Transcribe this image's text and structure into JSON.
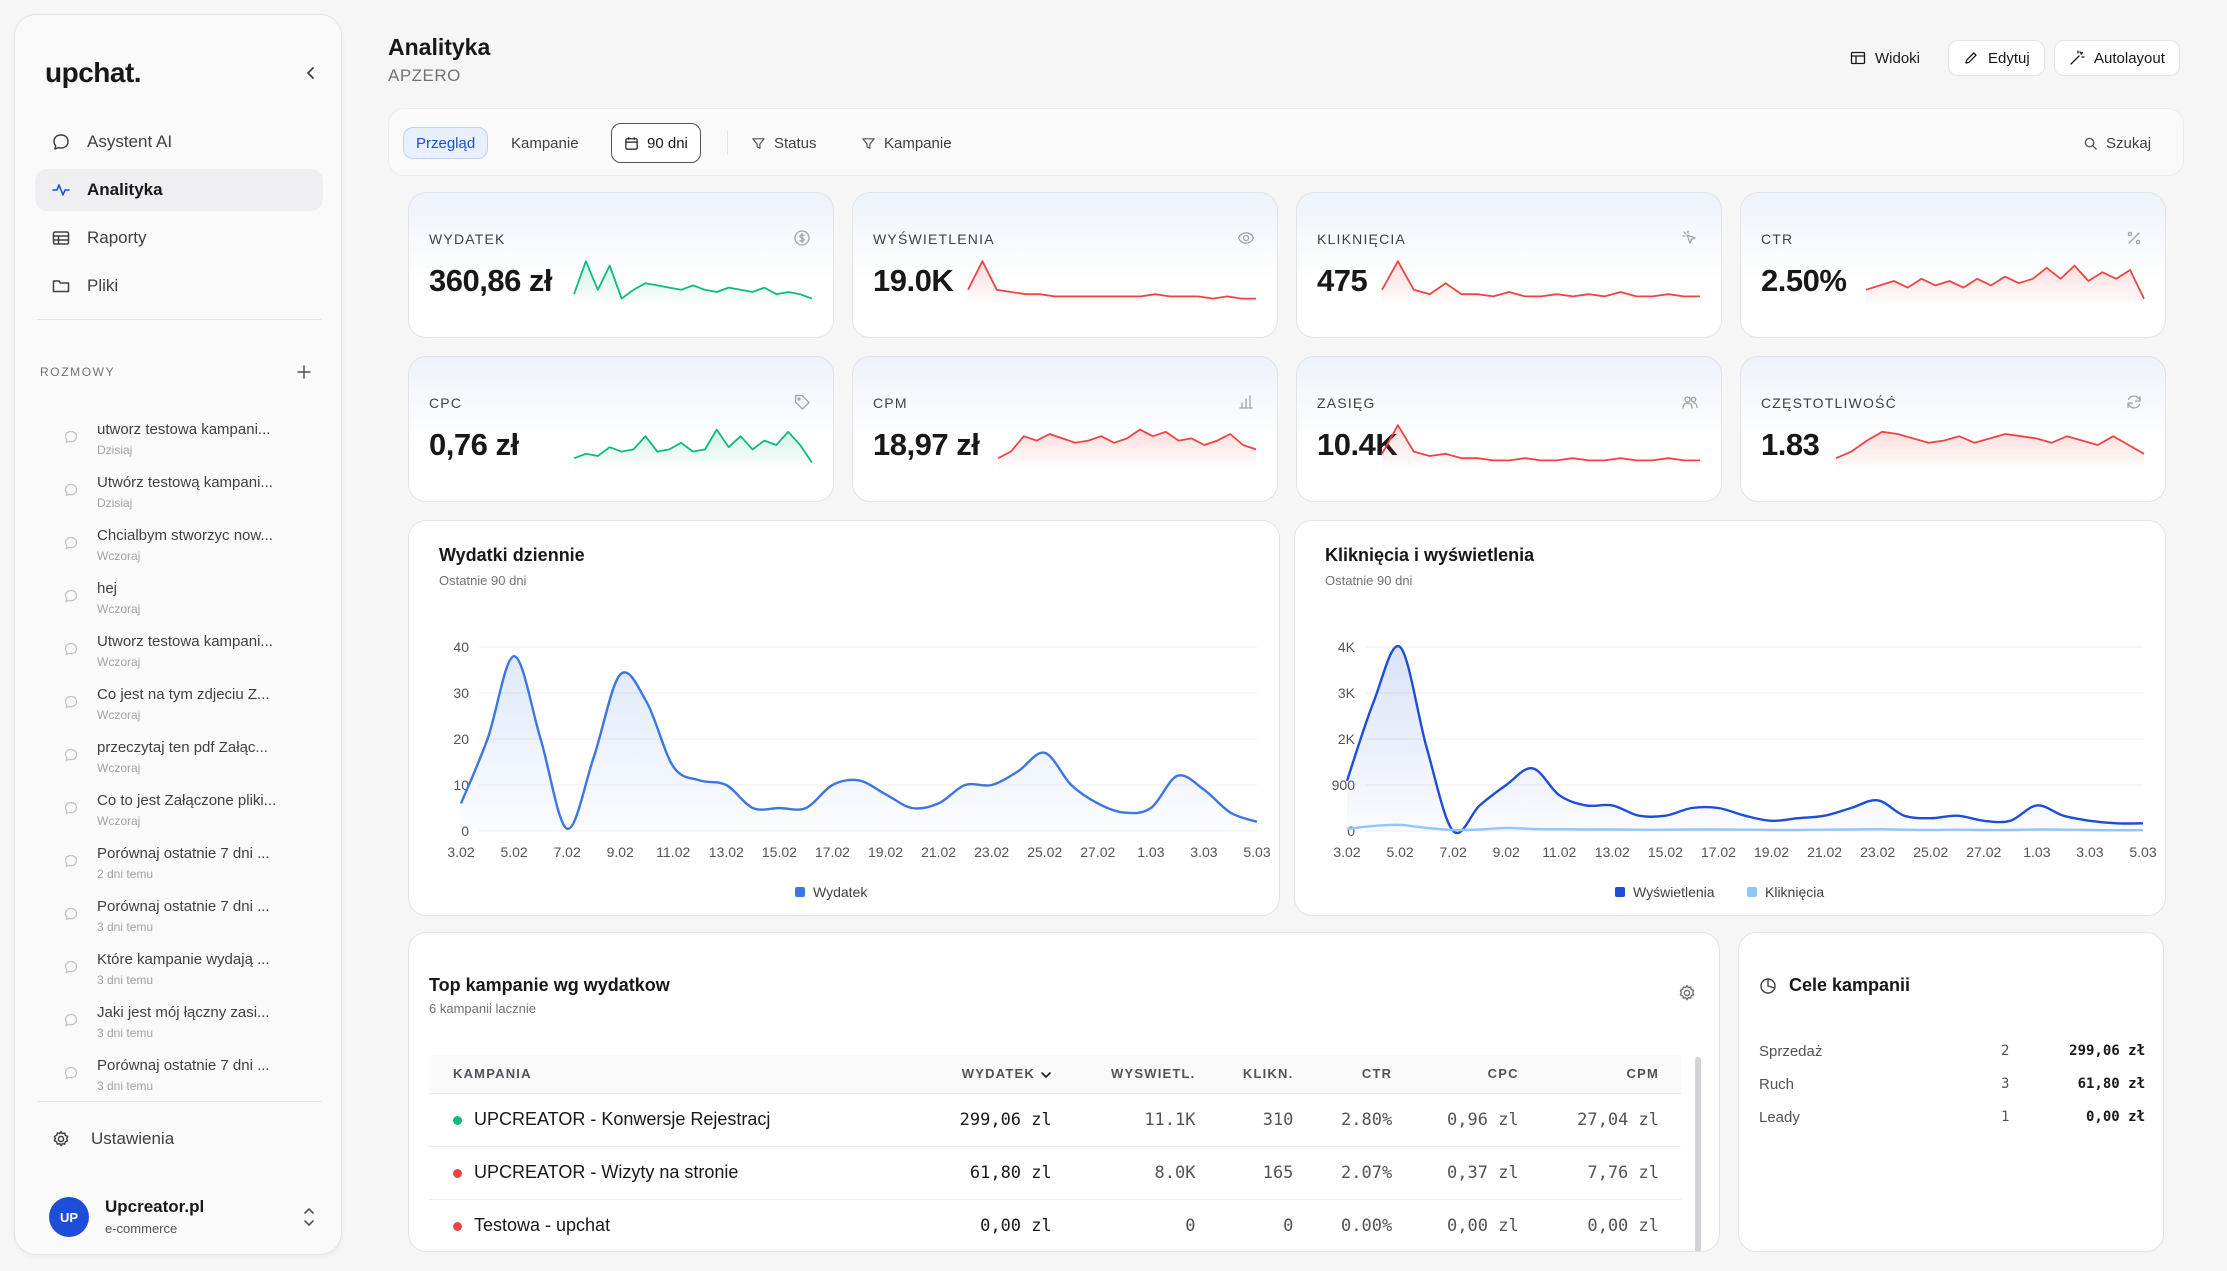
{
  "sidebar": {
    "logo": "upchat.",
    "nav": [
      {
        "label": "Asystent AI",
        "icon": "chat-icon"
      },
      {
        "label": "Analityka",
        "icon": "activity-icon",
        "active": true
      },
      {
        "label": "Raporty",
        "icon": "table-icon"
      },
      {
        "label": "Pliki",
        "icon": "folder-icon"
      }
    ],
    "section_label": "ROZMOWY",
    "conversations": [
      {
        "title": "utworz testowa kampani...",
        "time": "Dzisiaj"
      },
      {
        "title": "Utwórz testową kampani...",
        "time": "Dzisiaj"
      },
      {
        "title": "Chcialbym stworzyc now...",
        "time": "Wczoraj"
      },
      {
        "title": "hej",
        "time": "Wczoraj"
      },
      {
        "title": "Utworz testowa kampani...",
        "time": "Wczoraj"
      },
      {
        "title": "Co jest na tym zdjeciu Z...",
        "time": "Wczoraj"
      },
      {
        "title": "przeczytaj ten pdf Załąc...",
        "time": "Wczoraj"
      },
      {
        "title": "Co to jest Załączone pliki...",
        "time": "Wczoraj"
      },
      {
        "title": "Porównaj ostatnie 7 dni ...",
        "time": "2 dni temu"
      },
      {
        "title": "Porównaj ostatnie 7 dni ...",
        "time": "3 dni temu"
      },
      {
        "title": "Które kampanie wydają ...",
        "time": "3 dni temu"
      },
      {
        "title": "Jaki jest mój łączny zasi...",
        "time": "3 dni temu"
      },
      {
        "title": "Porównaj ostatnie 7 dni ...",
        "time": "3 dni temu"
      }
    ],
    "settings_label": "Ustawienia",
    "user": {
      "initials": "UP",
      "name": "Upcreator.pl",
      "role": "e-commerce"
    }
  },
  "header": {
    "title": "Analityka",
    "subtitle": "APZERO",
    "buttons": {
      "views": "Widoki",
      "edit": "Edytuj",
      "autolayout": "Autolayout"
    }
  },
  "filters": {
    "tab_overview": "Przegląd",
    "tab_campaigns": "Kampanie",
    "range": "90 dni",
    "status": "Status",
    "campaigns": "Kampanie",
    "search": "Szukaj"
  },
  "kpis": [
    {
      "label": "WYDATEK",
      "value": "360,86 zł",
      "icon": "dollar-circle-icon",
      "color": "#10b981"
    },
    {
      "label": "WYŚWIETLENIA",
      "value": "19.0K",
      "icon": "eye-icon",
      "color": "#ef4444"
    },
    {
      "label": "KLIKNIĘCIA",
      "value": "475",
      "icon": "cursor-click-icon",
      "color": "#ef4444"
    },
    {
      "label": "CTR",
      "value": "2.50%",
      "icon": "percent-icon",
      "color": "#ef4444"
    },
    {
      "label": "CPC",
      "value": "0,76 zł",
      "icon": "tag-icon",
      "color": "#10b981"
    },
    {
      "label": "CPM",
      "value": "18,97 zł",
      "icon": "bar-chart-icon",
      "color": "#ef4444"
    },
    {
      "label": "ZASIĘG",
      "value": "10.4K",
      "icon": "users-icon",
      "color": "#ef4444"
    },
    {
      "label": "CZĘSTOTLIWOŚĆ",
      "value": "1.83",
      "icon": "refresh-icon",
      "color": "#ef4444"
    }
  ],
  "charts": {
    "spend": {
      "title": "Wydatki dziennie",
      "subtitle": "Ostatnie 90 dni"
    },
    "clicks": {
      "title": "Kliknięcia i wyświetlenia",
      "subtitle": "Ostatnie 90 dni"
    }
  },
  "chart_data": [
    {
      "type": "area",
      "title": "Wydatki dziennie",
      "subtitle": "Ostatnie 90 dni",
      "x_ticks": [
        "3.02",
        "5.02",
        "7.02",
        "9.02",
        "11.02",
        "13.02",
        "15.02",
        "17.02",
        "19.02",
        "21.02",
        "23.02",
        "25.02",
        "27.02",
        "1.03",
        "3.03",
        "5.03"
      ],
      "y_ticks": [
        "0",
        "10",
        "20",
        "30",
        "40"
      ],
      "ylim": [
        0,
        40
      ],
      "legend": "bottom",
      "series": [
        {
          "name": "Wydatek",
          "color": "#3b76e1",
          "x": [
            0,
            0.5,
            1,
            1.5,
            2,
            2.5,
            3,
            3.5,
            4,
            4.5,
            5,
            5.5,
            6,
            6.5,
            7,
            7.5,
            8,
            8.5,
            9,
            9.5,
            10,
            10.5,
            11,
            11.5,
            12,
            12.5,
            13,
            13.5,
            14,
            14.5,
            15
          ],
          "values": [
            6,
            20,
            38,
            20,
            0.5,
            16,
            34,
            28,
            14,
            11,
            10,
            5,
            5,
            5,
            10,
            11,
            8,
            5,
            6,
            10,
            10,
            13,
            17,
            10,
            6,
            4,
            5,
            12,
            9,
            4,
            2
          ]
        }
      ]
    },
    {
      "type": "area",
      "title": "Kliknięcia i wyświetlenia",
      "subtitle": "Ostatnie 90 dni",
      "x_ticks": [
        "3.02",
        "5.02",
        "7.02",
        "9.02",
        "11.02",
        "13.02",
        "15.02",
        "17.02",
        "19.02",
        "21.02",
        "23.02",
        "25.02",
        "27.02",
        "1.03",
        "3.03",
        "5.03"
      ],
      "y_ticks": [
        "0",
        "900",
        "2K",
        "3K",
        "4K"
      ],
      "legend": "bottom",
      "series": [
        {
          "name": "Wyświetlenia",
          "color": "#1d4ed8",
          "x": [
            0,
            0.5,
            1,
            1.5,
            2,
            2.5,
            3,
            3.5,
            4,
            4.5,
            5,
            5.5,
            6,
            6.5,
            7,
            7.5,
            8,
            8.5,
            9,
            9.5,
            10,
            10.5,
            11,
            11.5,
            12,
            12.5,
            13,
            13.5,
            14,
            14.5,
            15
          ],
          "values": [
            1000,
            2800,
            4000,
            1800,
            0,
            500,
            900,
            1300,
            700,
            500,
            500,
            300,
            300,
            450,
            450,
            300,
            200,
            250,
            300,
            450,
            600,
            300,
            250,
            300,
            200,
            200,
            500,
            300,
            200,
            150,
            150
          ]
        },
        {
          "name": "Kliknięcia",
          "color": "#93c5fd",
          "x": [
            0,
            0.5,
            1,
            1.5,
            2,
            2.5,
            3,
            3.5,
            4,
            4.5,
            5,
            5.5,
            6,
            6.5,
            7,
            7.5,
            8,
            8.5,
            9,
            9.5,
            10,
            10.5,
            11,
            11.5,
            12,
            12.5,
            13,
            13.5,
            14,
            14.5,
            15
          ],
          "values": [
            40,
            100,
            120,
            60,
            20,
            30,
            60,
            40,
            35,
            30,
            30,
            25,
            25,
            30,
            30,
            25,
            20,
            20,
            25,
            30,
            35,
            25,
            20,
            25,
            20,
            20,
            30,
            25,
            20,
            15,
            15
          ]
        }
      ]
    }
  ],
  "top_campaigns": {
    "title": "Top kampanie wg wydatkow",
    "subtitle": "6 kampanii lacznie",
    "columns": [
      "KAMPANIA",
      "WYDATEK",
      "WYSWIETL.",
      "KLIKN.",
      "CTR",
      "CPC",
      "CPM"
    ],
    "rows": [
      {
        "name": "UPCREATOR - Konwersje Rejestracj",
        "dot": "#10b981",
        "spend": "299,06 zl",
        "impr": "11.1K",
        "clicks": "310",
        "ctr": "2.80%",
        "cpc": "0,96 zl",
        "cpm": "27,04 zl"
      },
      {
        "name": "UPCREATOR - Wizyty na stronie",
        "dot": "#ef4444",
        "spend": "61,80 zl",
        "impr": "8.0K",
        "clicks": "165",
        "ctr": "2.07%",
        "cpc": "0,37 zl",
        "cpm": "7,76 zl"
      },
      {
        "name": "Testowa - upchat",
        "dot": "#ef4444",
        "spend": "0,00 zl",
        "impr": "0",
        "clicks": "0",
        "ctr": "0.00%",
        "cpc": "0,00 zl",
        "cpm": "0,00 zl"
      }
    ]
  },
  "goals": {
    "title": "Cele kampanii",
    "rows": [
      {
        "name": "Sprzedaż",
        "count": "2",
        "value": "299,06 zł"
      },
      {
        "name": "Ruch",
        "count": "3",
        "value": "61,80 zł"
      },
      {
        "name": "Leady",
        "count": "1",
        "value": "0,00 zł"
      }
    ]
  }
}
